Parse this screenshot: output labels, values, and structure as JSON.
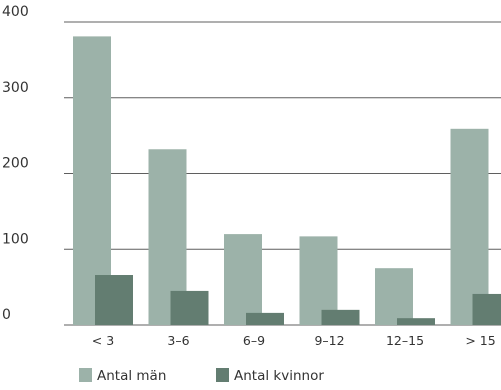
{
  "chart_data": {
    "type": "bar",
    "categories": [
      "< 3",
      "3–6",
      "6–9",
      "9–12",
      "12–15",
      "> 15"
    ],
    "series": [
      {
        "name": "Antal män",
        "color": "#9cb2a9",
        "values": [
          381,
          232,
          120,
          117,
          75,
          259
        ]
      },
      {
        "name": "Antal kvinnor",
        "color": "#637d71",
        "values": [
          66,
          45,
          16,
          20,
          9,
          41
        ]
      }
    ],
    "ylim": [
      0,
      400
    ],
    "yticks": [
      0,
      100,
      200,
      300,
      400
    ],
    "grid": true,
    "legend_position": "bottom-left"
  }
}
